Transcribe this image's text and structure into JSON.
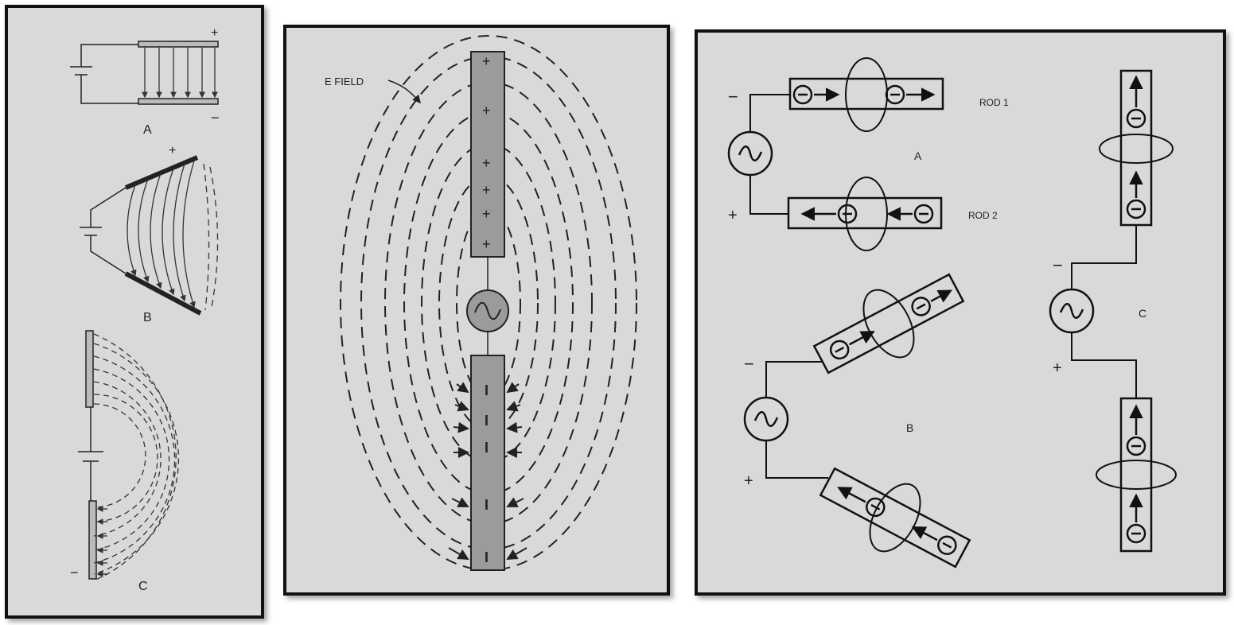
{
  "left_panel": {
    "label_a": "A",
    "label_b": "B",
    "label_c": "C",
    "plus_a": "+",
    "minus_a": "−",
    "plus_b": "+",
    "minus_c": "−"
  },
  "middle_panel": {
    "field_label": "E  FIELD",
    "plus_signs": [
      "+",
      "+",
      "+",
      "+",
      "+",
      "+"
    ],
    "minus_signs": [
      "I",
      "I",
      "I",
      "I",
      "I"
    ]
  },
  "right_panel": {
    "rod1_label": "ROD 1",
    "rod2_label": "ROD 2",
    "label_a": "A",
    "label_b": "B",
    "label_c": "C",
    "sign_a_top": "−",
    "sign_a_bottom": "+",
    "sign_b_top": "−",
    "sign_b_bottom": "+",
    "sign_c_top": "−",
    "sign_c_bottom": "+",
    "electron": "⊖"
  }
}
